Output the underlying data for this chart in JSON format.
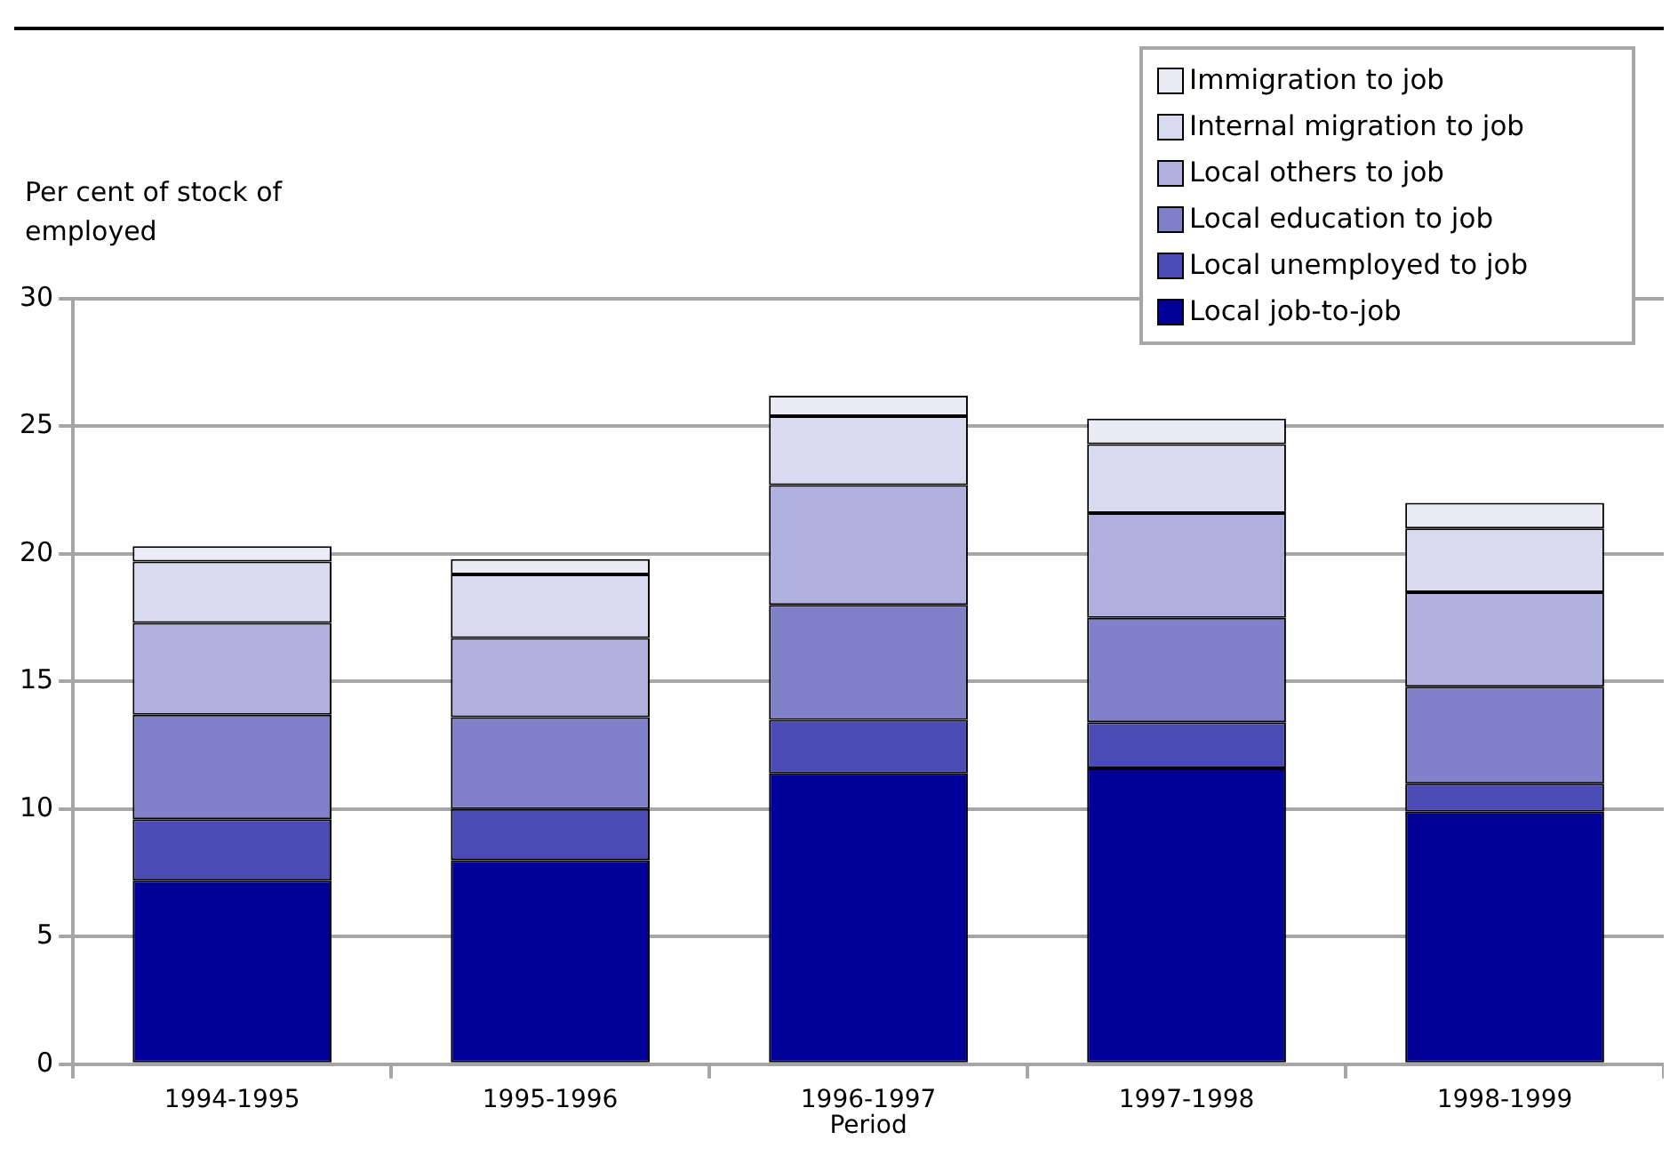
{
  "chart_data": {
    "type": "bar",
    "stacked": true,
    "ylabel": "Per cent of stock of employed",
    "xlabel": "Period",
    "categories": [
      "1994-1995",
      "1995-1996",
      "1996-1997",
      "1997-1998",
      "1998-1999"
    ],
    "series": [
      {
        "name": "Local job-to-job",
        "color": "#000099",
        "values": [
          7.2,
          8.0,
          11.4,
          11.6,
          9.9
        ]
      },
      {
        "name": "Local unemployed to job",
        "color": "#4b4bb5",
        "values": [
          2.4,
          2.0,
          2.1,
          1.8,
          1.1
        ]
      },
      {
        "name": "Local education to job",
        "color": "#8080c8",
        "values": [
          4.1,
          3.6,
          4.5,
          4.1,
          3.8
        ]
      },
      {
        "name": "Local others to job",
        "color": "#b0b0df",
        "values": [
          3.6,
          3.1,
          4.7,
          4.1,
          3.7
        ]
      },
      {
        "name": "Internal migration to job",
        "color": "#d9d9ef",
        "values": [
          2.4,
          2.5,
          2.7,
          2.7,
          2.5
        ]
      },
      {
        "name": "Immigration to job",
        "color": "#ebebf6",
        "values": [
          0.6,
          0.6,
          0.8,
          1.0,
          1.0
        ]
      }
    ],
    "ylim": [
      0,
      30
    ],
    "yticks": [
      0,
      5,
      10,
      15,
      20,
      25,
      30
    ],
    "grid": "y",
    "legend": "top right"
  }
}
